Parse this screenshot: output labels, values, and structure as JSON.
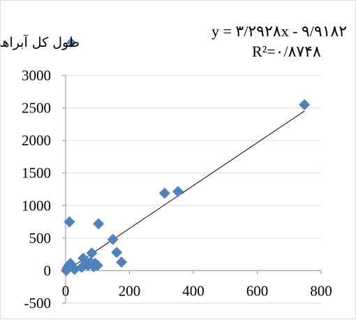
{
  "chart_data": {
    "type": "scatter",
    "title": "",
    "xlabel": "",
    "ylabel": "",
    "xlim": [
      0,
      800
    ],
    "ylim": [
      -500,
      3000
    ],
    "x_ticks": [
      "0",
      "200",
      "400",
      "600",
      "800"
    ],
    "y_ticks": [
      "3000",
      "2500",
      "2000",
      "1500",
      "1000",
      "500",
      "0",
      "-500"
    ],
    "grid": "horizontal",
    "legend_position": "top-left",
    "series": [
      {
        "name": "طول کل آبراهه",
        "color": "#4f81bd",
        "marker": "diamond",
        "points": [
          {
            "x": 2,
            "y": 0
          },
          {
            "x": 5,
            "y": 40
          },
          {
            "x": 10,
            "y": 80
          },
          {
            "x": 12,
            "y": 750
          },
          {
            "x": 15,
            "y": 110
          },
          {
            "x": 20,
            "y": 60
          },
          {
            "x": 28,
            "y": 20
          },
          {
            "x": 50,
            "y": 50
          },
          {
            "x": 55,
            "y": 190
          },
          {
            "x": 62,
            "y": 100
          },
          {
            "x": 70,
            "y": 80
          },
          {
            "x": 78,
            "y": 130
          },
          {
            "x": 82,
            "y": 270
          },
          {
            "x": 88,
            "y": 60
          },
          {
            "x": 92,
            "y": 110
          },
          {
            "x": 100,
            "y": 80
          },
          {
            "x": 103,
            "y": 720
          },
          {
            "x": 148,
            "y": 480
          },
          {
            "x": 160,
            "y": 280
          },
          {
            "x": 175,
            "y": 130
          },
          {
            "x": 310,
            "y": 1190
          },
          {
            "x": 352,
            "y": 1215
          },
          {
            "x": 748,
            "y": 2550
          }
        ]
      }
    ],
    "trendline": {
      "slope": 3.2928,
      "intercept": -9.9182,
      "x_range": [
        0,
        748
      ],
      "color": "#000000",
      "equation_label": "y = ۳/۲۹۲۸x - ۹/۹۱۸۲",
      "r2_label": "R²=۰/۸۷۴۸"
    }
  }
}
